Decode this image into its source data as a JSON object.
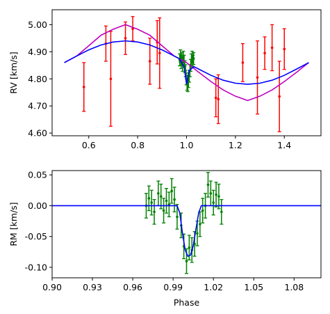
{
  "chart_data": [
    {
      "type": "scatter",
      "xlabel": "",
      "ylabel": "RV [km/s]",
      "xlim": [
        0.45,
        1.55
      ],
      "ylim": [
        4.59,
        5.055
      ],
      "xticks": [
        0.6,
        0.8,
        1.0,
        1.2,
        1.4
      ],
      "xtick_labels": [
        "0.6",
        "0.8",
        "1.0",
        "1.2",
        "1.4"
      ],
      "yticks": [
        4.6,
        4.7,
        4.8,
        4.9,
        5.0
      ],
      "ytick_labels": [
        "4.60",
        "4.70",
        "4.80",
        "4.90",
        "5.00"
      ],
      "series": [
        {
          "kind": "errorbar",
          "color": "#ff0000",
          "points": [
            {
              "x": 0.58,
              "y": 4.77,
              "err": 0.09
            },
            {
              "x": 0.67,
              "y": 4.93,
              "err": 0.065
            },
            {
              "x": 0.69,
              "y": 4.8,
              "err": 0.175
            },
            {
              "x": 0.75,
              "y": 4.95,
              "err": 0.06
            },
            {
              "x": 0.78,
              "y": 4.985,
              "err": 0.045
            },
            {
              "x": 0.85,
              "y": 4.865,
              "err": 0.085
            },
            {
              "x": 0.88,
              "y": 4.935,
              "err": 0.08
            },
            {
              "x": 0.89,
              "y": 4.895,
              "err": 0.13
            },
            {
              "x": 1.12,
              "y": 4.73,
              "err": 0.07
            },
            {
              "x": 1.13,
              "y": 4.725,
              "err": 0.09
            },
            {
              "x": 1.23,
              "y": 4.86,
              "err": 0.07
            },
            {
              "x": 1.29,
              "y": 4.805,
              "err": 0.135
            },
            {
              "x": 1.32,
              "y": 4.895,
              "err": 0.06
            },
            {
              "x": 1.35,
              "y": 4.915,
              "err": 0.085
            },
            {
              "x": 1.38,
              "y": 4.735,
              "err": 0.13
            },
            {
              "x": 1.4,
              "y": 4.91,
              "err": 0.075
            }
          ]
        },
        {
          "kind": "errorbar",
          "color": "#008000",
          "points": [
            {
              "x": 0.972,
              "y": 4.87,
              "err": 0.022
            },
            {
              "x": 0.975,
              "y": 4.885,
              "err": 0.022
            },
            {
              "x": 0.978,
              "y": 4.86,
              "err": 0.022
            },
            {
              "x": 0.981,
              "y": 4.875,
              "err": 0.022
            },
            {
              "x": 0.984,
              "y": 4.85,
              "err": 0.022
            },
            {
              "x": 0.987,
              "y": 4.88,
              "err": 0.022
            },
            {
              "x": 0.99,
              "y": 4.865,
              "err": 0.022
            },
            {
              "x": 0.993,
              "y": 4.845,
              "err": 0.022
            },
            {
              "x": 0.996,
              "y": 4.83,
              "err": 0.022
            },
            {
              "x": 0.999,
              "y": 4.8,
              "err": 0.022
            },
            {
              "x": 1.002,
              "y": 4.78,
              "err": 0.022
            },
            {
              "x": 1.005,
              "y": 4.775,
              "err": 0.022
            },
            {
              "x": 1.008,
              "y": 4.79,
              "err": 0.022
            },
            {
              "x": 1.011,
              "y": 4.81,
              "err": 0.022
            },
            {
              "x": 1.014,
              "y": 4.83,
              "err": 0.022
            },
            {
              "x": 1.017,
              "y": 4.85,
              "err": 0.022
            },
            {
              "x": 1.02,
              "y": 4.87,
              "err": 0.022
            },
            {
              "x": 1.023,
              "y": 4.88,
              "err": 0.022
            },
            {
              "x": 1.026,
              "y": 4.865,
              "err": 0.022
            },
            {
              "x": 1.029,
              "y": 4.875,
              "err": 0.022
            }
          ]
        },
        {
          "kind": "line",
          "color": "#bf00bf",
          "x": [
            0.5,
            0.55,
            0.6,
            0.65,
            0.7,
            0.75,
            0.8,
            0.85,
            0.9,
            0.95,
            1.0,
            1.05,
            1.1,
            1.15,
            1.2,
            1.25,
            1.3,
            1.35,
            1.4,
            1.45,
            1.5
          ],
          "y": [
            4.86,
            4.884,
            4.922,
            4.961,
            4.983,
            5.0,
            4.983,
            4.961,
            4.922,
            4.884,
            4.86,
            4.824,
            4.79,
            4.759,
            4.736,
            4.72,
            4.736,
            4.759,
            4.79,
            4.824,
            4.86
          ]
        },
        {
          "kind": "line",
          "color": "#0000ff",
          "x": [
            0.5,
            0.55,
            0.6,
            0.65,
            0.7,
            0.75,
            0.8,
            0.85,
            0.9,
            0.95,
            0.97,
            0.99,
            1.0,
            1.01,
            1.03,
            1.05,
            1.1,
            1.15,
            1.2,
            1.25,
            1.3,
            1.35,
            1.4,
            1.45,
            1.5
          ],
          "y": [
            4.86,
            4.884,
            4.907,
            4.925,
            4.936,
            4.94,
            4.936,
            4.925,
            4.907,
            4.884,
            4.875,
            4.845,
            4.78,
            4.83,
            4.845,
            4.836,
            4.813,
            4.795,
            4.784,
            4.78,
            4.784,
            4.795,
            4.813,
            4.836,
            4.86
          ]
        }
      ]
    },
    {
      "type": "scatter",
      "xlabel": "Phase",
      "ylabel": "RM [km/s]",
      "xlim": [
        0.9,
        1.1
      ],
      "ylim": [
        -0.117,
        0.057
      ],
      "xticks": [
        0.9,
        0.93,
        0.96,
        0.99,
        1.02,
        1.05,
        1.08
      ],
      "xtick_labels": [
        "0.90",
        "0.93",
        "0.96",
        "0.99",
        "1.02",
        "1.05",
        "1.08"
      ],
      "yticks": [
        0.05,
        0.0,
        -0.05,
        -0.1
      ],
      "ytick_labels": [
        "0.05",
        "0.00",
        "-0.05",
        "-0.10"
      ],
      "series": [
        {
          "kind": "errorbar",
          "color": "#008000",
          "points": [
            {
              "x": 0.97,
              "y": 0.0,
              "err": 0.02
            },
            {
              "x": 0.972,
              "y": 0.012,
              "err": 0.02
            },
            {
              "x": 0.974,
              "y": 0.005,
              "err": 0.02
            },
            {
              "x": 0.976,
              "y": -0.01,
              "err": 0.02
            },
            {
              "x": 0.979,
              "y": 0.02,
              "err": 0.02
            },
            {
              "x": 0.981,
              "y": 0.015,
              "err": 0.02
            },
            {
              "x": 0.983,
              "y": -0.008,
              "err": 0.02
            },
            {
              "x": 0.985,
              "y": 0.008,
              "err": 0.02
            },
            {
              "x": 0.987,
              "y": 0.002,
              "err": 0.02
            },
            {
              "x": 0.989,
              "y": 0.024,
              "err": 0.02
            },
            {
              "x": 0.991,
              "y": 0.01,
              "err": 0.02
            },
            {
              "x": 0.993,
              "y": -0.018,
              "err": 0.02
            },
            {
              "x": 0.996,
              "y": -0.032,
              "err": 0.02
            },
            {
              "x": 0.998,
              "y": -0.066,
              "err": 0.02
            },
            {
              "x": 1.0,
              "y": -0.09,
              "err": 0.02
            },
            {
              "x": 1.002,
              "y": -0.068,
              "err": 0.02
            },
            {
              "x": 1.004,
              "y": -0.072,
              "err": 0.02
            },
            {
              "x": 1.006,
              "y": -0.062,
              "err": 0.02
            },
            {
              "x": 1.008,
              "y": -0.045,
              "err": 0.02
            },
            {
              "x": 1.01,
              "y": -0.03,
              "err": 0.02
            },
            {
              "x": 1.012,
              "y": -0.008,
              "err": 0.02
            },
            {
              "x": 1.014,
              "y": 0.0,
              "err": 0.02
            },
            {
              "x": 1.016,
              "y": 0.034,
              "err": 0.02
            },
            {
              "x": 1.018,
              "y": 0.02,
              "err": 0.02
            },
            {
              "x": 1.02,
              "y": 0.005,
              "err": 0.02
            },
            {
              "x": 1.022,
              "y": 0.018,
              "err": 0.02
            },
            {
              "x": 1.024,
              "y": 0.015,
              "err": 0.02
            },
            {
              "x": 1.026,
              "y": -0.01,
              "err": 0.02
            }
          ]
        },
        {
          "kind": "line",
          "color": "#0000ff",
          "x": [
            0.9,
            0.993,
            0.995,
            0.997,
            0.999,
            1.001,
            1.003,
            1.005,
            1.007,
            1.009,
            1.011,
            1.013,
            1.1
          ],
          "y": [
            0.0,
            0.0,
            -0.012,
            -0.045,
            -0.072,
            -0.082,
            -0.08,
            -0.065,
            -0.038,
            -0.012,
            0.0,
            0.0,
            0.0
          ]
        }
      ]
    }
  ]
}
